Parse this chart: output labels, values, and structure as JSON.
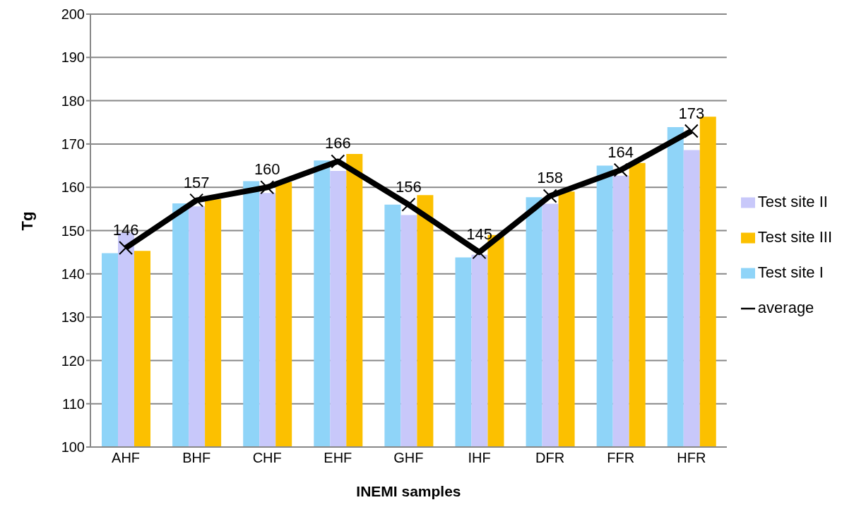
{
  "chart_data": {
    "type": "bar",
    "xlabel": "INEMI samples",
    "ylabel": "Tg",
    "categories": [
      "AHF",
      "BHF",
      "CHF",
      "EHF",
      "GHF",
      "IHF",
      "DFR",
      "FFR",
      "HFR"
    ],
    "series": [
      {
        "name": "Test site I",
        "color": "#8fd4f8",
        "values": [
          144.8,
          156.3,
          161.4,
          166.2,
          156.0,
          143.8,
          157.7,
          165.0,
          173.9
        ]
      },
      {
        "name": "Test site  II",
        "color": "#c8c8fa",
        "values": [
          149.5,
          155.6,
          158.7,
          163.8,
          153.6,
          144.4,
          156.2,
          162.7,
          168.6
        ]
      },
      {
        "name": "Test site  III",
        "color": "#fcc000",
        "values": [
          145.3,
          157.2,
          161.2,
          167.7,
          158.2,
          149.0,
          159.0,
          165.6,
          176.3
        ]
      },
      {
        "name": "average",
        "type": "line",
        "color": "#000000",
        "marker": "cross",
        "values": [
          146,
          157,
          160,
          166,
          156,
          145,
          158,
          164,
          173
        ],
        "value_labels": [
          "146",
          "157",
          "160",
          "166",
          "156",
          "145",
          "158",
          "164",
          "173"
        ]
      }
    ],
    "ylim": [
      100,
      200
    ],
    "yticks": [
      100,
      110,
      120,
      130,
      140,
      150,
      160,
      170,
      180,
      190,
      200
    ],
    "grid": "y",
    "legend": "right"
  }
}
